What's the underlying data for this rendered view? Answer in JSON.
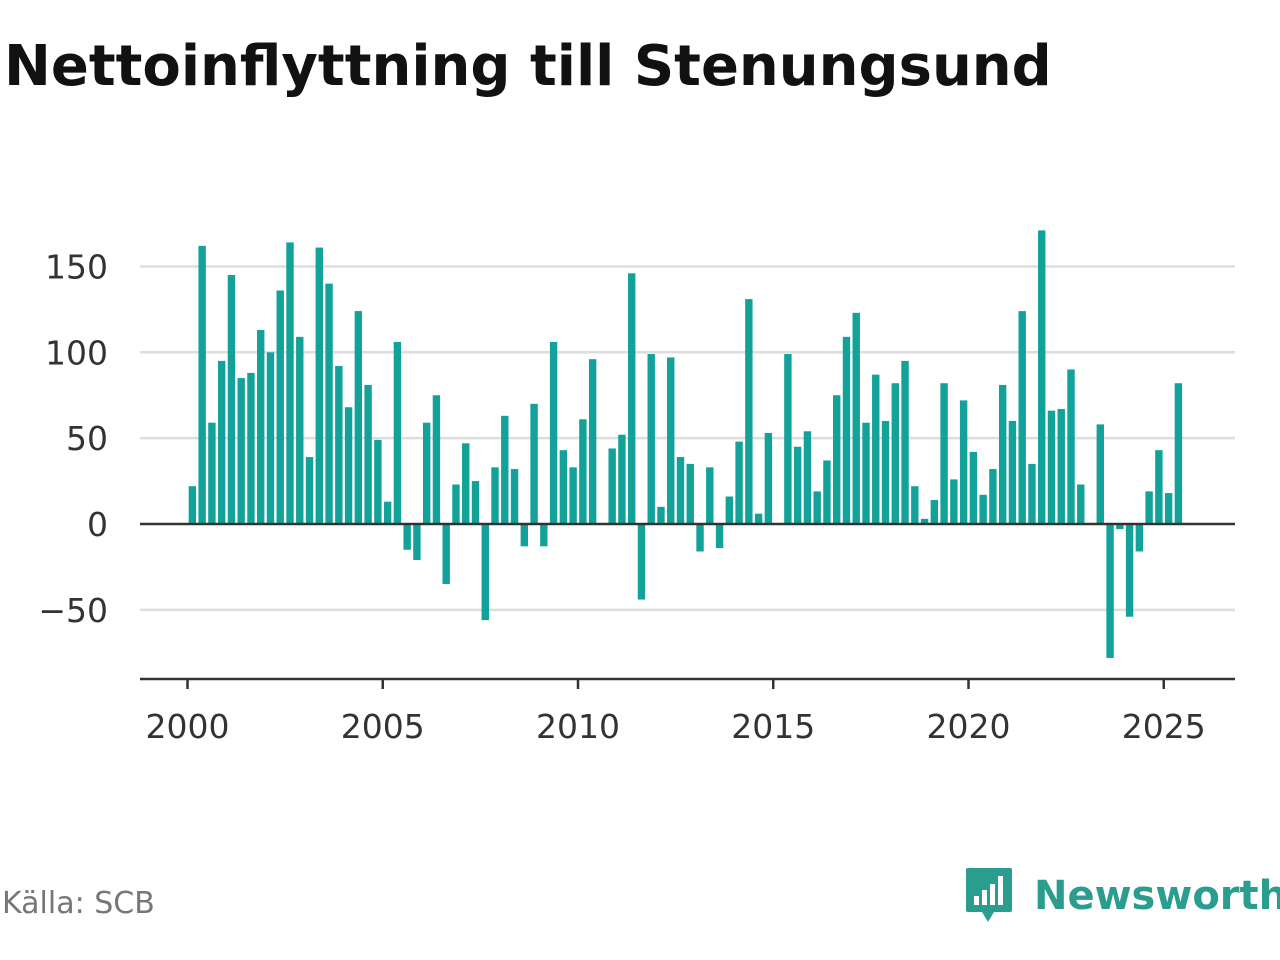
{
  "title": "Nettoinflyttning till Stenungsund",
  "source": "Källa: SCB",
  "brand": {
    "name": "Newsworthy",
    "icon": "newsworthy-logo-icon"
  },
  "colors": {
    "bar": "#12a29a",
    "grid": "#dddddd",
    "axis": "#333333",
    "text": "#333333"
  },
  "chart_data": {
    "type": "bar",
    "title": "Nettoinflyttning till Stenungsund",
    "frequency": "quarterly",
    "x_start": "2000 Q1",
    "xticks": [
      2000,
      2005,
      2010,
      2015,
      2020,
      2025
    ],
    "ylim": [
      -90,
      180
    ],
    "yticks": [
      -50,
      0,
      50,
      100,
      150
    ],
    "ytick_labels": [
      "−50",
      "0",
      "50",
      "100",
      "150"
    ],
    "grid": true,
    "values": [
      22,
      162,
      59,
      95,
      145,
      85,
      88,
      113,
      100,
      136,
      164,
      109,
      39,
      161,
      140,
      92,
      68,
      124,
      81,
      49,
      13,
      106,
      -15,
      -21,
      59,
      75,
      -35,
      23,
      47,
      25,
      -56,
      33,
      63,
      32,
      -13,
      70,
      -13,
      106,
      43,
      33,
      61,
      96,
      null,
      44,
      52,
      146,
      -44,
      99,
      10,
      97,
      39,
      35,
      -16,
      33,
      -14,
      16,
      48,
      131,
      6,
      53,
      null,
      99,
      45,
      54,
      19,
      37,
      75,
      109,
      123,
      59,
      87,
      60,
      82,
      95,
      22,
      3,
      14,
      82,
      26,
      72,
      42,
      17,
      32,
      81,
      60,
      124,
      35,
      171,
      66,
      67,
      90,
      23,
      null,
      58,
      -78,
      -3,
      -54,
      -16,
      19,
      43,
      18,
      82
    ]
  }
}
